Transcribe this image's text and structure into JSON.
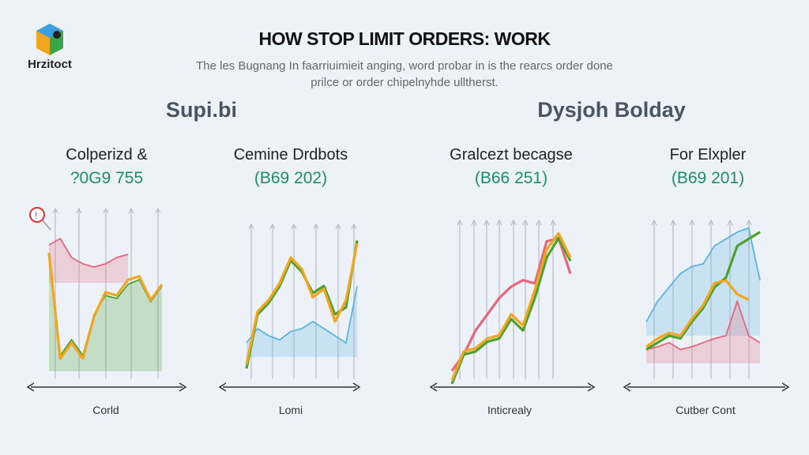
{
  "brand": "Hrzitoct",
  "title": "HOW STOP LIMIT ORDERS: WORK",
  "subtitle": [
    "The les Bugnang In faarriuimieit anging, word probar in is the rearcs order done",
    "prilce or order chipelnyhde ulltherst."
  ],
  "sections": [
    "Supi.bi",
    "Dysjoh Bolday"
  ],
  "colors": {
    "orange": "#f2a51f",
    "green": "#4ea12e",
    "pink": "#e4677c",
    "blue": "#5bb5de",
    "accent": "#1f8a6e"
  },
  "chart_data": [
    {
      "type": "line",
      "heading": "Colperizd &",
      "value": "?0G9 755",
      "xlabel": "Corld",
      "icon": "alert-magnifier-icon",
      "series": [
        {
          "color": "#e4677c",
          "fill": true,
          "x": [
            0,
            1,
            2,
            3,
            4,
            5,
            6,
            7
          ],
          "y": [
            80,
            84,
            72,
            68,
            66,
            68,
            72,
            74
          ]
        },
        {
          "color": "#4ea12e",
          "fill": true,
          "x": [
            0,
            1,
            2,
            3,
            4,
            5,
            6,
            7,
            8,
            9,
            10
          ],
          "y": [
            72,
            10,
            20,
            10,
            36,
            48,
            46,
            55,
            58,
            44,
            54
          ]
        },
        {
          "color": "#f2a51f",
          "fill": false,
          "x": [
            0,
            1,
            2,
            3,
            4,
            5,
            6,
            7,
            8,
            9,
            10
          ],
          "y": [
            75,
            8,
            18,
            8,
            35,
            50,
            48,
            58,
            60,
            45,
            55
          ]
        }
      ]
    },
    {
      "type": "line",
      "heading": "Cemine Drdbots",
      "value": "(B69 202)",
      "xlabel": "Lomi",
      "series": [
        {
          "color": "#5bb5de",
          "fill": true,
          "x": [
            0,
            1,
            2,
            3,
            4,
            5,
            6,
            7,
            8,
            9,
            10
          ],
          "y": [
            20,
            30,
            25,
            22,
            28,
            30,
            35,
            30,
            25,
            20,
            60
          ]
        },
        {
          "color": "#4ea12e",
          "fill": false,
          "x": [
            0,
            1,
            2,
            3,
            4,
            5,
            6,
            7,
            8,
            9,
            10
          ],
          "y": [
            2,
            40,
            48,
            60,
            78,
            70,
            55,
            60,
            40,
            45,
            92
          ]
        },
        {
          "color": "#f2a51f",
          "fill": false,
          "x": [
            0,
            1,
            2,
            3,
            4,
            5,
            6,
            7,
            8,
            9,
            10
          ],
          "y": [
            5,
            42,
            50,
            62,
            80,
            72,
            52,
            58,
            35,
            50,
            90
          ]
        }
      ]
    },
    {
      "type": "line",
      "heading": "Gralcezt becagse",
      "value": "(B66 251)",
      "xlabel": "Inticrealy",
      "series": [
        {
          "color": "#e4677c",
          "fill": false,
          "x": [
            0,
            1,
            2,
            3,
            4,
            5,
            6,
            7,
            8,
            9,
            10
          ],
          "y": [
            10,
            20,
            35,
            45,
            55,
            62,
            66,
            64,
            90,
            92,
            70
          ]
        },
        {
          "color": "#4ea12e",
          "fill": false,
          "x": [
            0,
            1,
            2,
            3,
            4,
            5,
            6,
            7,
            8,
            9,
            10
          ],
          "y": [
            2,
            20,
            22,
            28,
            30,
            42,
            35,
            55,
            80,
            92,
            78
          ]
        },
        {
          "color": "#f2a51f",
          "fill": false,
          "x": [
            0,
            1,
            2,
            3,
            4,
            5,
            6,
            7,
            8,
            9,
            10
          ],
          "y": [
            4,
            22,
            24,
            30,
            32,
            45,
            38,
            60,
            85,
            95,
            80
          ]
        }
      ]
    },
    {
      "type": "line",
      "heading": "For Elxpler",
      "value": "(B69 201)",
      "xlabel": "Cutber Cont",
      "series": [
        {
          "color": "#5bb5de",
          "fill": true,
          "x": [
            0,
            1,
            2,
            3,
            4,
            5,
            6,
            7,
            8,
            9,
            10
          ],
          "y": [
            30,
            45,
            55,
            65,
            70,
            72,
            85,
            90,
            95,
            98,
            60
          ]
        },
        {
          "color": "#e4677c",
          "fill": true,
          "x": [
            0,
            1,
            2,
            3,
            4,
            5,
            6,
            7,
            8,
            9,
            10
          ],
          "y": [
            10,
            12,
            15,
            10,
            12,
            15,
            18,
            20,
            45,
            20,
            15
          ]
        },
        {
          "color": "#4ea12e",
          "fill": false,
          "x": [
            0,
            1,
            2,
            3,
            4,
            5,
            6,
            7,
            8,
            9,
            10
          ],
          "y": [
            10,
            15,
            20,
            18,
            30,
            40,
            55,
            62,
            85,
            90,
            95
          ]
        },
        {
          "color": "#f2a51f",
          "fill": false,
          "x": [
            0,
            1,
            2,
            3,
            4,
            5,
            6,
            7,
            8,
            9,
            10
          ],
          "y": [
            12,
            18,
            22,
            20,
            32,
            42,
            58,
            60,
            50,
            46,
            null
          ]
        }
      ]
    }
  ]
}
